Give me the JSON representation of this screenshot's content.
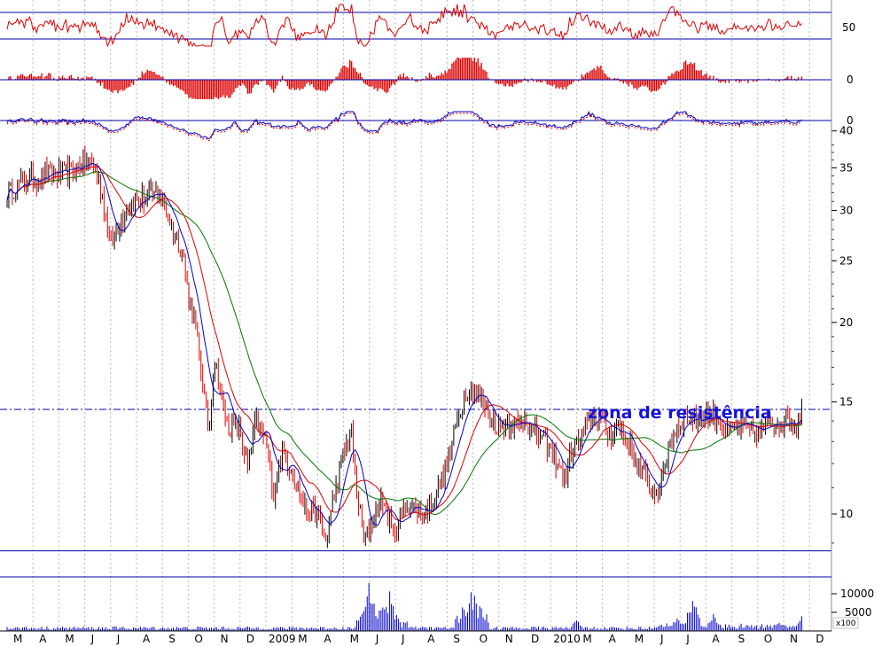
{
  "chart_data": {
    "type": "candlestick",
    "colors": {
      "price_up": "#000000",
      "price_down": "#e00000",
      "ma_short": "#0000cc",
      "ma_mid": "#dd0000",
      "ma_long": "#007700",
      "rsi": "#dd0000",
      "momentum": "#dd0000",
      "oscillator": "#0000cc",
      "volume": "#0000cc",
      "frame": "#0000aa",
      "grid": "#b8b8b8"
    },
    "x_axis": {
      "months": [
        "M",
        "A",
        "M",
        "J",
        "J",
        "A",
        "S",
        "O",
        "N",
        "D",
        "2009",
        "M",
        "A",
        "M",
        "J",
        "J",
        "A",
        "S",
        "O",
        "N",
        "D",
        "2010",
        "M",
        "A",
        "M",
        "J",
        "J",
        "A",
        "S",
        "O",
        "N",
        "D"
      ]
    },
    "price_axis": {
      "scale": "log",
      "range": [
        8.2,
        46
      ],
      "ticks": [
        "40",
        "35",
        "30",
        "25",
        "20",
        "15",
        "10"
      ],
      "tick_values": [
        40,
        35,
        30,
        25,
        20,
        15,
        10
      ]
    },
    "indicator_panels": [
      {
        "name": "",
        "tick": "50",
        "tick_value": 50
      },
      {
        "name": "",
        "tick": "0",
        "tick_value": 0
      },
      {
        "name": "",
        "tick": "0",
        "tick_value": 0
      }
    ],
    "volume_axis": {
      "ticks": [
        "10000",
        "5000"
      ],
      "tick_values": [
        10000,
        5000
      ],
      "unit_label": "x100"
    },
    "annotations": [
      {
        "text": "zona de resistência",
        "price": 14.6
      }
    ],
    "reference_lines": [
      {
        "kind": "resistance",
        "price": 14.6,
        "style": "dash-dot"
      },
      {
        "kind": "support",
        "price": 8.75,
        "style": "solid"
      }
    ],
    "price_path": [
      [
        0,
        32
      ],
      [
        0.3,
        32.5
      ],
      [
        0.6,
        33.6
      ],
      [
        1.0,
        33.5
      ],
      [
        1.5,
        34.3
      ],
      [
        2.0,
        34.2
      ],
      [
        2.6,
        34.8
      ],
      [
        3.0,
        35.8
      ],
      [
        3.3,
        35.5
      ],
      [
        3.7,
        31.5
      ],
      [
        4.0,
        26.5
      ],
      [
        4.3,
        28.5
      ],
      [
        4.8,
        31.0
      ],
      [
        5.5,
        31.5
      ],
      [
        5.9,
        32.0
      ],
      [
        6.2,
        29.5
      ],
      [
        6.5,
        27.5
      ],
      [
        6.8,
        25.5
      ],
      [
        7.0,
        22.0
      ],
      [
        7.3,
        19.5
      ],
      [
        7.6,
        15.5
      ],
      [
        7.8,
        13.5
      ],
      [
        8.0,
        17.5
      ],
      [
        8.5,
        13.8
      ],
      [
        9.0,
        13.5
      ],
      [
        9.3,
        11.8
      ],
      [
        9.6,
        14.0
      ],
      [
        10.0,
        13.0
      ],
      [
        10.3,
        10.8
      ],
      [
        10.6,
        12.5
      ],
      [
        11.0,
        11.8
      ],
      [
        11.5,
        10.2
      ],
      [
        12.0,
        10.0
      ],
      [
        12.3,
        9.0
      ],
      [
        12.6,
        10.5
      ],
      [
        13.0,
        12.4
      ],
      [
        13.3,
        13.5
      ],
      [
        13.5,
        11.0
      ],
      [
        13.8,
        9.0
      ],
      [
        14.2,
        10.0
      ],
      [
        14.5,
        10.6
      ],
      [
        14.9,
        9.3
      ],
      [
        15.5,
        10.5
      ],
      [
        16.0,
        10.0
      ],
      [
        16.3,
        10.2
      ],
      [
        16.7,
        11.0
      ],
      [
        17.0,
        12.0
      ],
      [
        17.4,
        14.0
      ],
      [
        17.7,
        15.5
      ],
      [
        18.0,
        15.7
      ],
      [
        18.4,
        15.0
      ],
      [
        18.7,
        14.0
      ],
      [
        19.0,
        13.8
      ],
      [
        19.4,
        14.0
      ],
      [
        19.8,
        13.8
      ],
      [
        20.0,
        14.3
      ],
      [
        20.3,
        13.5
      ],
      [
        20.6,
        13.2
      ],
      [
        21.0,
        12.5
      ],
      [
        21.3,
        12.0
      ],
      [
        21.5,
        11.2
      ],
      [
        21.8,
        12.5
      ],
      [
        22.2,
        13.3
      ],
      [
        22.6,
        14.2
      ],
      [
        22.9,
        14.3
      ],
      [
        23.2,
        13.3
      ],
      [
        23.6,
        13.8
      ],
      [
        24.0,
        13.0
      ],
      [
        24.3,
        12.0
      ],
      [
        24.6,
        11.5
      ],
      [
        25.0,
        10.7
      ],
      [
        25.3,
        11.3
      ],
      [
        25.6,
        13.0
      ],
      [
        25.9,
        13.8
      ],
      [
        26.2,
        14.3
      ],
      [
        26.6,
        14.0
      ],
      [
        27.0,
        14.3
      ],
      [
        27.4,
        14.2
      ],
      [
        27.8,
        13.4
      ],
      [
        28.2,
        13.8
      ],
      [
        28.6,
        13.6
      ],
      [
        29.0,
        13.4
      ],
      [
        29.4,
        13.8
      ],
      [
        29.8,
        14.0
      ],
      [
        30.2,
        14.1
      ],
      [
        30.5,
        13.8
      ],
      [
        30.7,
        14.9
      ]
    ],
    "volume_spikes": [
      [
        13.8,
        6500
      ],
      [
        14.0,
        11800
      ],
      [
        14.2,
        4500
      ],
      [
        14.5,
        9000
      ],
      [
        14.8,
        9800
      ],
      [
        17.6,
        5200
      ],
      [
        18.0,
        10500
      ],
      [
        18.3,
        6000
      ],
      [
        22.0,
        3200
      ],
      [
        25.9,
        3800
      ],
      [
        26.5,
        10800
      ],
      [
        27.3,
        4200
      ],
      [
        29.8,
        2600
      ],
      [
        30.8,
        5400
      ]
    ]
  }
}
